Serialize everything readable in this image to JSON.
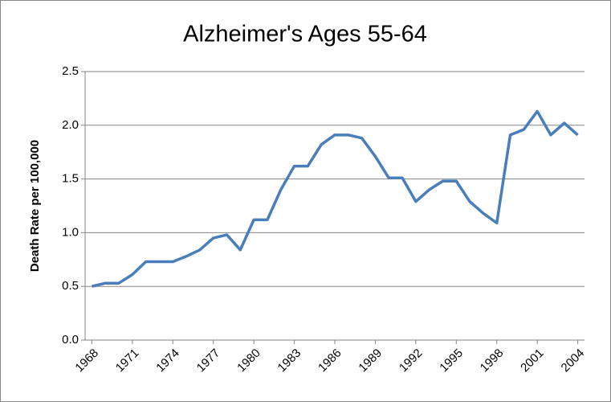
{
  "chart_data": {
    "type": "line",
    "title": "Alzheimer's Ages 55-64",
    "y_label": "Death Rate per 100,000",
    "x": [
      1968,
      1969,
      1970,
      1971,
      1972,
      1973,
      1974,
      1975,
      1976,
      1977,
      1978,
      1979,
      1980,
      1981,
      1982,
      1983,
      1984,
      1985,
      1986,
      1987,
      1988,
      1989,
      1990,
      1991,
      1992,
      1993,
      1994,
      1995,
      1996,
      1997,
      1998,
      1999,
      2000,
      2001,
      2002,
      2003,
      2004
    ],
    "values": [
      0.5,
      0.53,
      0.53,
      0.61,
      0.73,
      0.73,
      0.73,
      0.78,
      0.84,
      0.95,
      0.98,
      0.84,
      1.12,
      1.12,
      1.4,
      1.62,
      1.62,
      1.82,
      1.91,
      1.91,
      1.88,
      1.71,
      1.51,
      1.51,
      1.29,
      1.4,
      1.48,
      1.48,
      1.29,
      1.18,
      1.09,
      1.91,
      1.96,
      2.13,
      1.91,
      2.02,
      1.91
    ],
    "color": "#4a7ebb",
    "xlim": [
      1967.5,
      2004.5
    ],
    "xticks": [
      1968,
      1971,
      1974,
      1977,
      1980,
      1983,
      1986,
      1989,
      1992,
      1995,
      1998,
      2001,
      2004
    ],
    "ylim": [
      0,
      2.5
    ],
    "yticks": [
      {
        "value": 0,
        "label": "0.0"
      },
      {
        "value": 0.5,
        "label": "0.5"
      },
      {
        "value": 1,
        "label": "1.0"
      },
      {
        "value": 1.5,
        "label": "1.5"
      },
      {
        "value": 2,
        "label": "2.0"
      },
      {
        "value": 2.5,
        "label": "2.5"
      }
    ],
    "grid": true
  }
}
